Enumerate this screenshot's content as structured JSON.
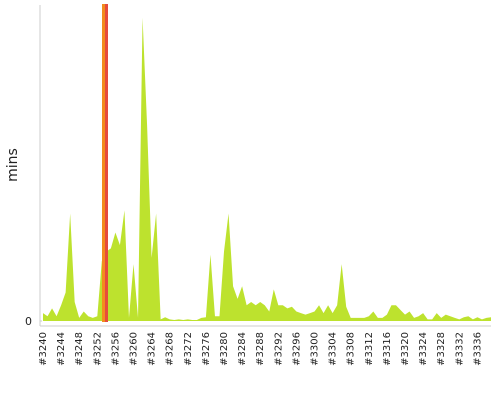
{
  "chart_data": {
    "type": "area",
    "ylabel": "mins",
    "color": "#bde22e",
    "categories": [
      "#3240",
      null,
      null,
      null,
      "#3244",
      null,
      null,
      null,
      "#3248",
      null,
      null,
      null,
      "#3252",
      null,
      null,
      null,
      "#3256",
      null,
      null,
      null,
      "#3260",
      null,
      null,
      null,
      "#3264",
      null,
      null,
      null,
      "#3268",
      null,
      null,
      null,
      "#3272",
      null,
      null,
      null,
      "#3276",
      null,
      null,
      null,
      "#3280",
      null,
      null,
      null,
      "#3284",
      null,
      null,
      null,
      "#3288",
      null,
      null,
      null,
      "#3292",
      null,
      null,
      null,
      "#3296",
      null,
      null,
      null,
      "#3300",
      null,
      null,
      null,
      "#3304",
      null,
      null,
      null,
      "#3308",
      null,
      null,
      null,
      "#3312",
      null,
      null,
      null,
      "#3316",
      null,
      null,
      null,
      "#3320",
      null,
      null,
      null,
      "#3324",
      null,
      null,
      null,
      "#3328",
      null,
      null,
      null,
      "#3332",
      null,
      null,
      null,
      "#3336",
      null,
      null,
      null
    ],
    "values": [
      2.5,
      1.5,
      4,
      1.5,
      5,
      9,
      34,
      6,
      1,
      3,
      1.5,
      1,
      1.5,
      19,
      22,
      23,
      28,
      24,
      35,
      1,
      18,
      1,
      96,
      62,
      20,
      34,
      0.5,
      1.2,
      0.5,
      0.3,
      0.5,
      0.3,
      0.5,
      0.3,
      0.3,
      1,
      1.2,
      21,
      1.5,
      1.5,
      22,
      34,
      11,
      7,
      11,
      5,
      6,
      5,
      6,
      5,
      3,
      10,
      5,
      5,
      4,
      4.5,
      3,
      2.5,
      2,
      2.5,
      3,
      5,
      2.5,
      5,
      2.5,
      5,
      18,
      4.5,
      1,
      1,
      1,
      1,
      1.5,
      3,
      1,
      1,
      2,
      5,
      5,
      3.5,
      2,
      3,
      1,
      1.5,
      2.5,
      0.5,
      0.5,
      2.5,
      1,
      2,
      1.5,
      1,
      0.5,
      1.2,
      1.5,
      0.5,
      1.2,
      0.5,
      1,
      1.2
    ],
    "ylim": [
      0,
      100
    ],
    "yticks": [
      0
    ]
  }
}
